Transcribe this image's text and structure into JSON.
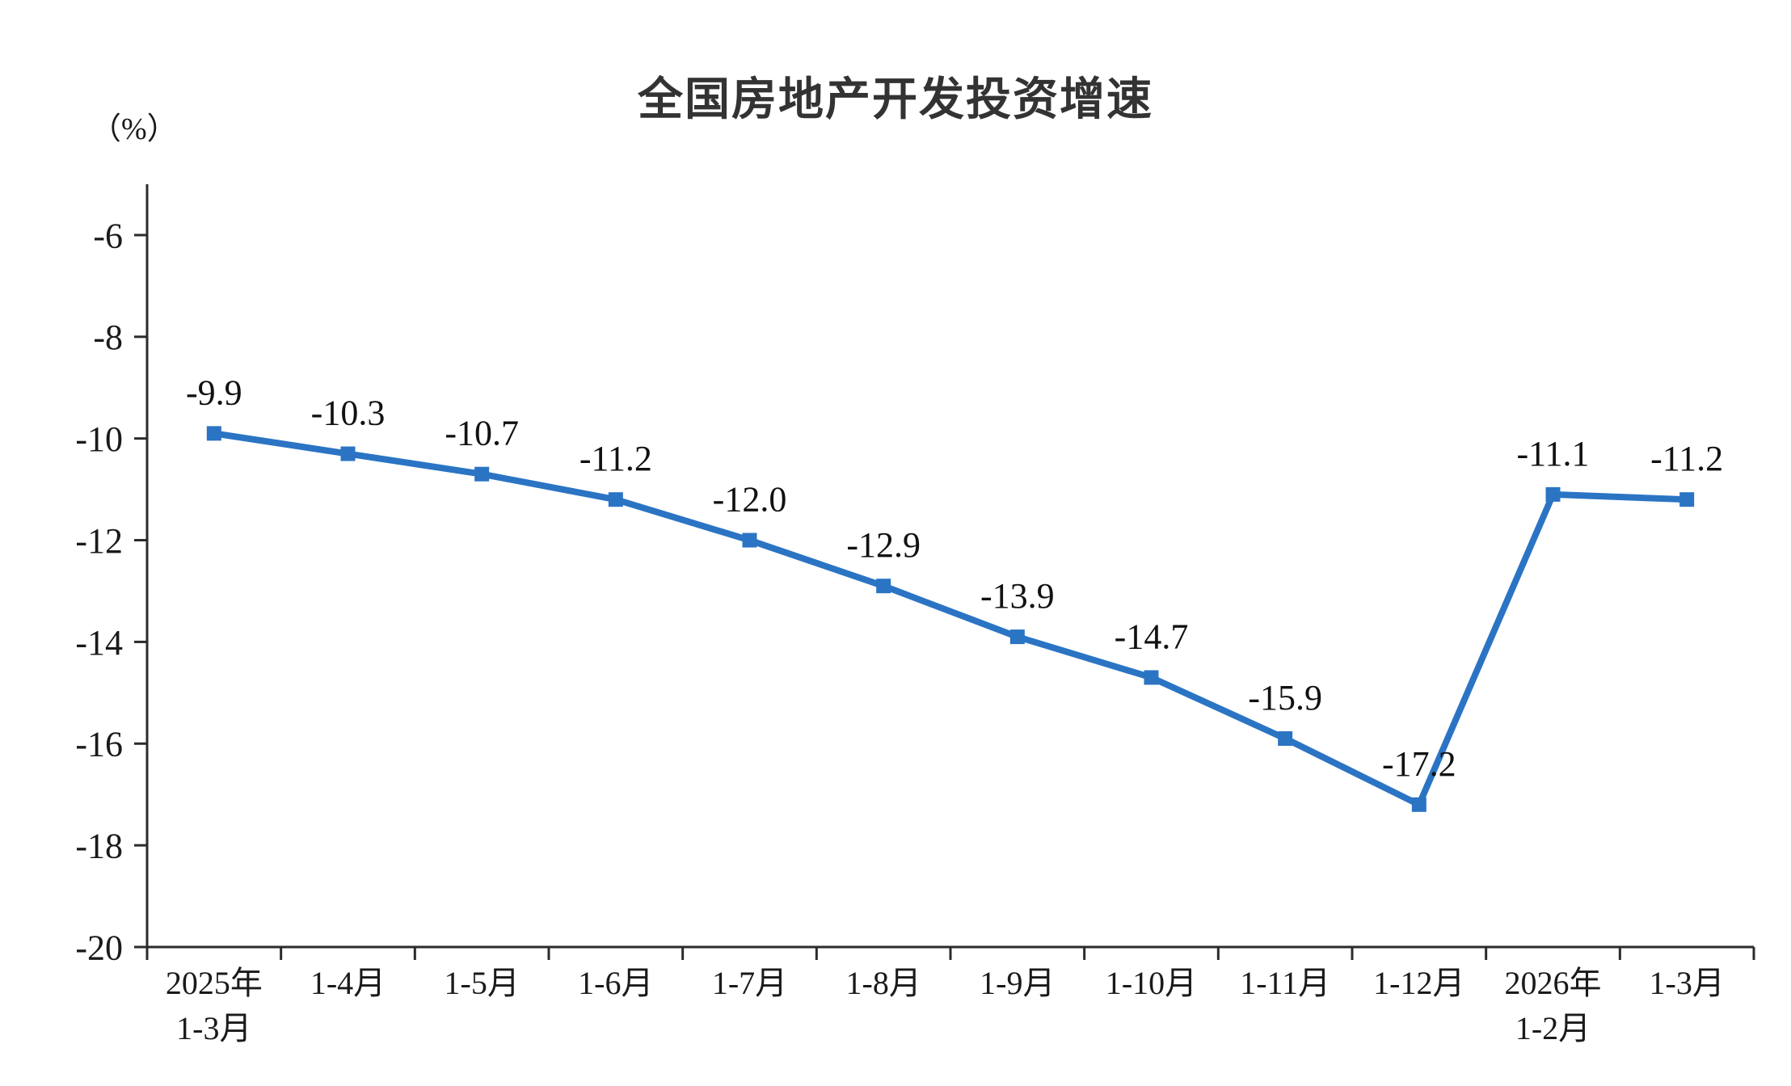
{
  "chart_data": {
    "type": "line",
    "title": "全国房地产开发投资增速",
    "unit_label": "（%）",
    "categories": [
      "2025年\n1-3月",
      "1-4月",
      "1-5月",
      "1-6月",
      "1-7月",
      "1-8月",
      "1-9月",
      "1-10月",
      "1-11月",
      "1-12月",
      "2026年\n1-2月",
      "1-3月"
    ],
    "values": [
      -9.9,
      -10.3,
      -10.7,
      -11.2,
      -12.0,
      -12.9,
      -13.9,
      -14.7,
      -15.9,
      -17.2,
      -11.1,
      -11.2
    ],
    "point_labels": [
      "-9.9",
      "-10.3",
      "-10.7",
      "-11.2",
      "-12.0",
      "-12.9",
      "-13.9",
      "-14.7",
      "-15.9",
      "-17.2",
      "-11.1",
      "-11.2"
    ],
    "ylim": [
      -20,
      -5
    ],
    "yticks": [
      -6,
      -8,
      -10,
      -12,
      -14,
      -16,
      -18,
      -20
    ],
    "ytick_labels": [
      "-6",
      "-8",
      "-10",
      "-12",
      "-14",
      "-16",
      "-18",
      "-20"
    ],
    "grid": "off",
    "legend": "none",
    "marker": "square",
    "line_color": "#2B74C4",
    "axis_color": "#2b2b2b",
    "label_color": "#111111",
    "title_color": "#333333"
  }
}
